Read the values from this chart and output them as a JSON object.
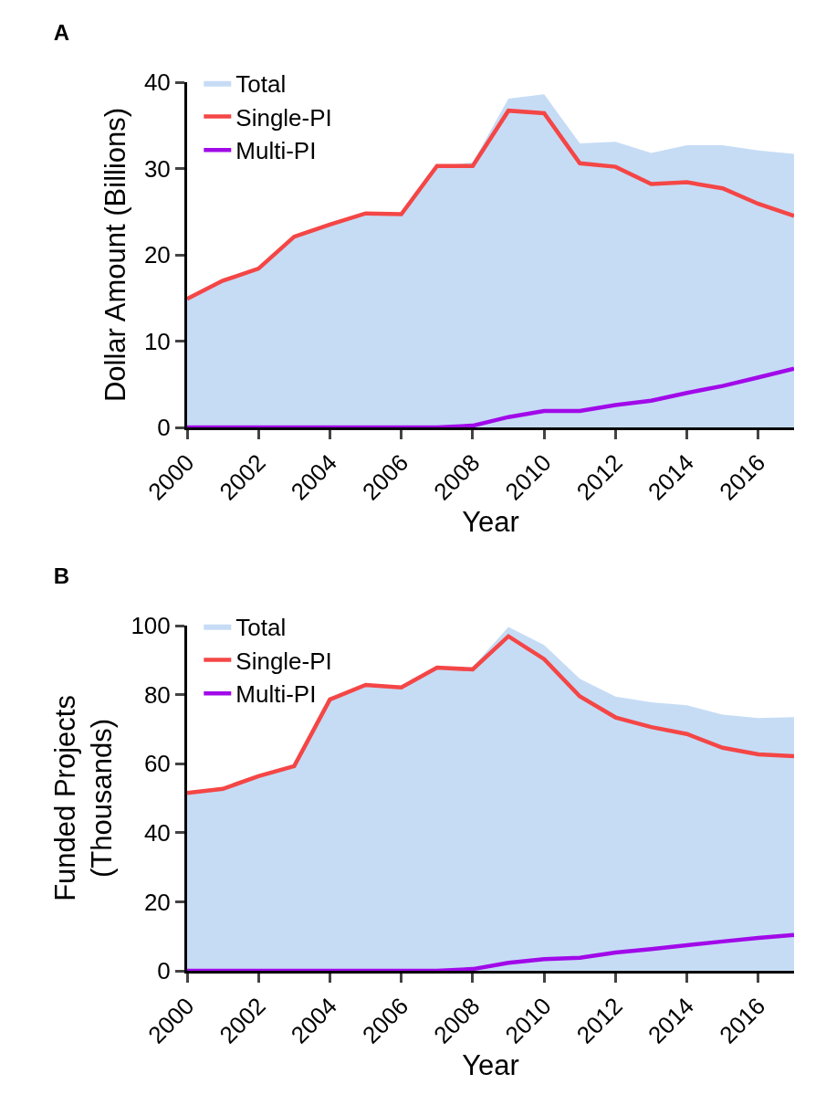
{
  "chart_data": [
    {
      "type": "line",
      "title": "A",
      "xlabel": "Year",
      "ylabel": "Dollar Amount (Billions)",
      "x": [
        2000,
        2001,
        2002,
        2003,
        2004,
        2005,
        2006,
        2007,
        2008,
        2009,
        2010,
        2011,
        2012,
        2013,
        2014,
        2015,
        2016,
        2017
      ],
      "xlim": [
        2000,
        2017
      ],
      "xticks": [
        2000,
        2002,
        2004,
        2006,
        2008,
        2010,
        2012,
        2014,
        2016
      ],
      "ylim": [
        0,
        40
      ],
      "yticks": [
        0,
        10,
        20,
        30,
        40
      ],
      "grid": false,
      "legend": "top left",
      "marker": "none",
      "line_style": "solid",
      "series": [
        {
          "name": "Total",
          "type": "area",
          "color": "#c6dcf5",
          "values": [
            14.9,
            17,
            18.4,
            22.1,
            23.5,
            24.8,
            24.7,
            30.3,
            30.7,
            38.1,
            38.6,
            32.9,
            33.1,
            31.8,
            32.7,
            32.7,
            32.1,
            31.7
          ]
        },
        {
          "name": "Single-PI",
          "color": "#f44646",
          "values": [
            14.9,
            17,
            18.4,
            22.1,
            23.5,
            24.8,
            24.7,
            30.3,
            30.3,
            36.7,
            36.4,
            30.6,
            30.2,
            28.2,
            28.4,
            27.7,
            25.9,
            24.5
          ]
        },
        {
          "name": "Multi-PI",
          "color": "#a10ae8",
          "values": [
            0,
            0,
            0,
            0,
            0,
            0,
            0,
            0,
            0.2,
            1.2,
            1.9,
            1.9,
            2.6,
            3.1,
            4.0,
            4.8,
            5.8,
            6.8
          ]
        }
      ]
    },
    {
      "type": "line",
      "title": "B",
      "xlabel": "Year",
      "ylabel": "Funded Projects\n(Thousands)",
      "x": [
        2000,
        2001,
        2002,
        2003,
        2004,
        2005,
        2006,
        2007,
        2008,
        2009,
        2010,
        2011,
        2012,
        2013,
        2014,
        2015,
        2016,
        2017
      ],
      "xlim": [
        2000,
        2017
      ],
      "xticks": [
        2000,
        2002,
        2004,
        2006,
        2008,
        2010,
        2012,
        2014,
        2016
      ],
      "ylim": [
        0,
        100
      ],
      "yticks": [
        0,
        20,
        40,
        60,
        80,
        100
      ],
      "grid": false,
      "legend": "top left",
      "marker": "none",
      "line_style": "solid",
      "series": [
        {
          "name": "Total",
          "type": "area",
          "color": "#c6dcf5",
          "values": [
            51.5,
            52.7,
            56.4,
            59.3,
            78.6,
            82.8,
            82.1,
            87.8,
            88,
            99.6,
            94.4,
            84.6,
            79.4,
            77.8,
            76.9,
            74.2,
            73.2,
            73.5
          ]
        },
        {
          "name": "Single-PI",
          "color": "#f44646",
          "values": [
            51.5,
            52.7,
            56.4,
            59.3,
            78.6,
            82.8,
            82.1,
            87.8,
            87.3,
            96.9,
            90.3,
            79.5,
            73.4,
            70.6,
            68.6,
            64.6,
            62.7,
            62.2
          ]
        },
        {
          "name": "Multi-PI",
          "color": "#a10ae8",
          "values": [
            0,
            0,
            0,
            0,
            0,
            0,
            0,
            0,
            0.5,
            2.3,
            3.4,
            3.8,
            5.3,
            6.3,
            7.4,
            8.5,
            9.5,
            10.4
          ]
        }
      ]
    }
  ]
}
